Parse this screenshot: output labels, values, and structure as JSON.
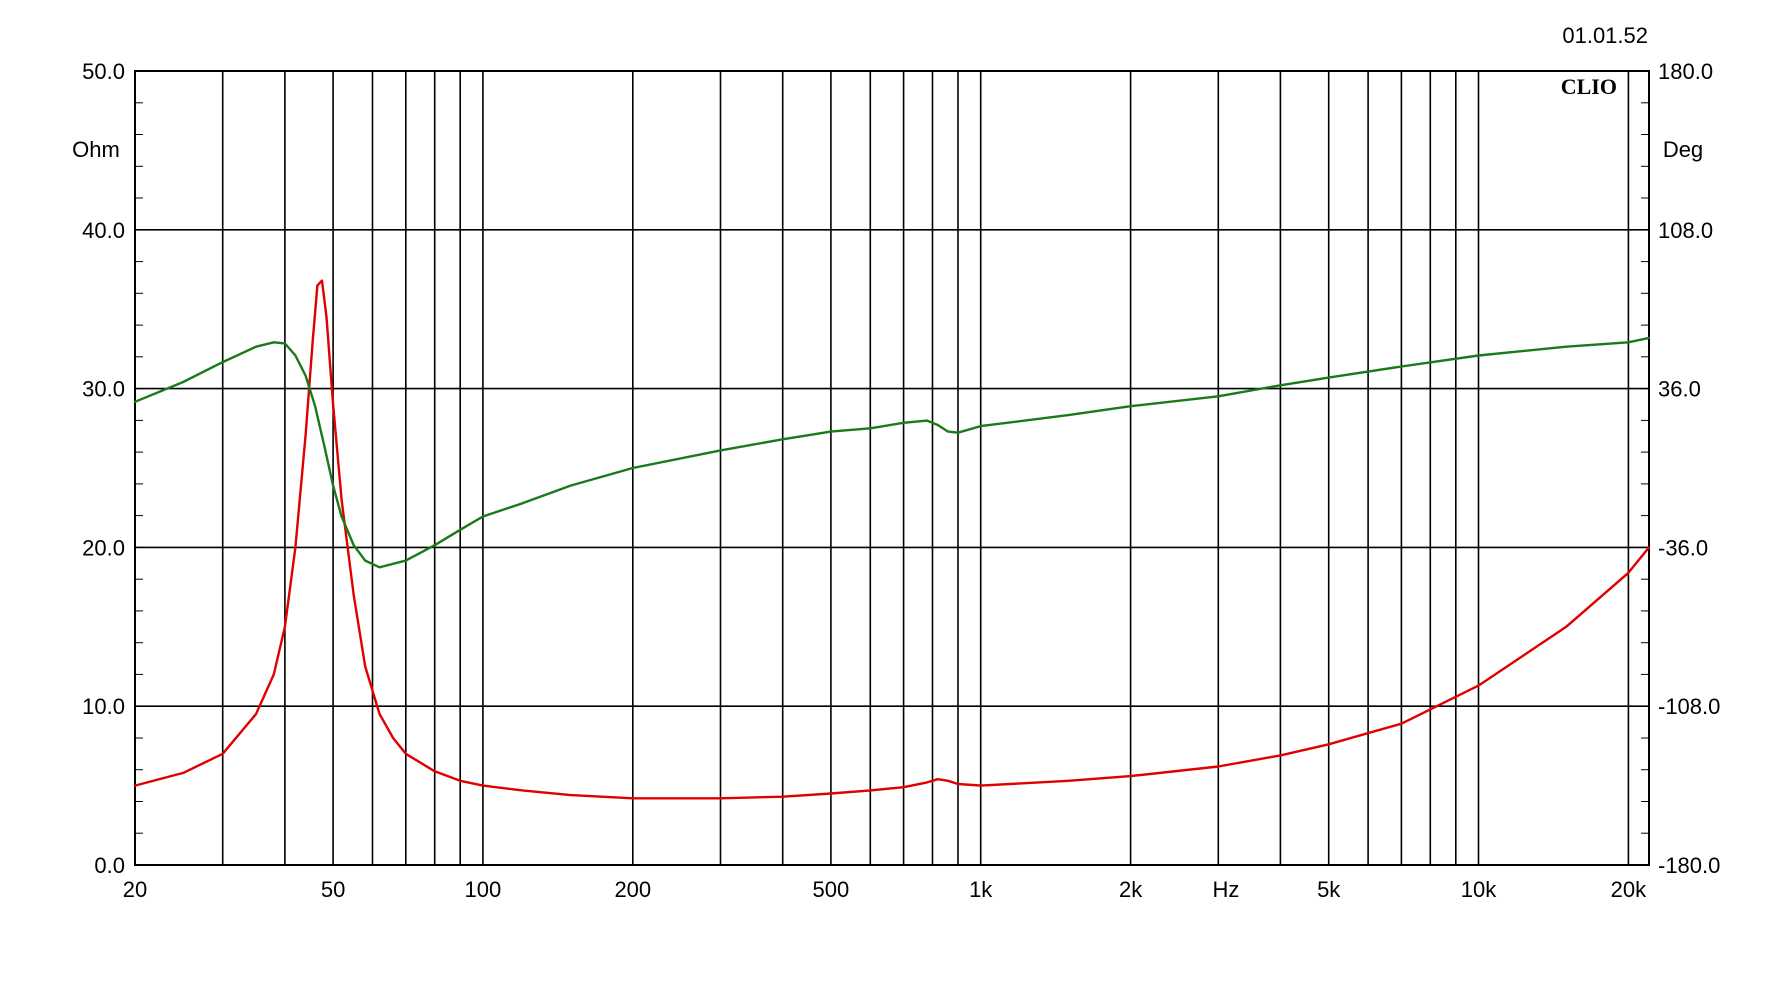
{
  "chart_data": {
    "type": "line",
    "timestamp": "01.01.52",
    "brand": "CLIO",
    "x_axis": {
      "unit_label": "Hz",
      "scale": "log",
      "range": [
        20,
        22000
      ],
      "tick_labels": [
        {
          "value": 20,
          "label": "20"
        },
        {
          "value": 50,
          "label": "50"
        },
        {
          "value": 100,
          "label": "100"
        },
        {
          "value": 200,
          "label": "200"
        },
        {
          "value": 500,
          "label": "500"
        },
        {
          "value": 1000,
          "label": "1k"
        },
        {
          "value": 2000,
          "label": "2k"
        },
        {
          "value": 5000,
          "label": "5k"
        },
        {
          "value": 10000,
          "label": "10k"
        },
        {
          "value": 20000,
          "label": "20k"
        }
      ],
      "grid_lines": [
        30,
        40,
        50,
        60,
        70,
        80,
        90,
        100,
        200,
        300,
        400,
        500,
        600,
        700,
        800,
        900,
        1000,
        2000,
        3000,
        4000,
        5000,
        6000,
        7000,
        8000,
        9000,
        10000,
        20000
      ]
    },
    "y_left": {
      "unit_label": "Ohm",
      "range": [
        0,
        50
      ],
      "ticks": [
        {
          "value": 0,
          "label": "0.0"
        },
        {
          "value": 10,
          "label": "10.0"
        },
        {
          "value": 20,
          "label": "20.0"
        },
        {
          "value": 30,
          "label": "30.0"
        },
        {
          "value": 40,
          "label": "40.0"
        },
        {
          "value": 50,
          "label": "50.0"
        }
      ]
    },
    "y_right": {
      "unit_label": "Deg",
      "range": [
        -180,
        180
      ],
      "ticks": [
        {
          "value": -180,
          "label": "-180.0"
        },
        {
          "value": -108,
          "label": "-108.0"
        },
        {
          "value": -36,
          "label": "-36.0"
        },
        {
          "value": 36,
          "label": "36.0"
        },
        {
          "value": 108,
          "label": "108.0"
        },
        {
          "value": 180,
          "label": "180.0"
        }
      ]
    },
    "grid": true,
    "series": [
      {
        "axis": "left",
        "color": "#e00000",
        "points": [
          [
            20,
            5.0
          ],
          [
            25,
            5.8
          ],
          [
            30,
            7.0
          ],
          [
            35,
            9.5
          ],
          [
            38,
            12.0
          ],
          [
            40,
            15.0
          ],
          [
            42,
            20.0
          ],
          [
            44,
            27.0
          ],
          [
            45.5,
            33.0
          ],
          [
            46.5,
            36.5
          ],
          [
            47.5,
            36.8
          ],
          [
            48.5,
            34.5
          ],
          [
            50,
            29.0
          ],
          [
            52,
            23.0
          ],
          [
            55,
            17.0
          ],
          [
            58,
            12.5
          ],
          [
            62,
            9.5
          ],
          [
            66,
            8.0
          ],
          [
            70,
            7.0
          ],
          [
            80,
            5.9
          ],
          [
            90,
            5.3
          ],
          [
            100,
            5.0
          ],
          [
            120,
            4.7
          ],
          [
            150,
            4.4
          ],
          [
            200,
            4.2
          ],
          [
            300,
            4.2
          ],
          [
            400,
            4.3
          ],
          [
            500,
            4.5
          ],
          [
            600,
            4.7
          ],
          [
            700,
            4.9
          ],
          [
            780,
            5.2
          ],
          [
            820,
            5.4
          ],
          [
            860,
            5.3
          ],
          [
            900,
            5.1
          ],
          [
            1000,
            5.0
          ],
          [
            1500,
            5.3
          ],
          [
            2000,
            5.6
          ],
          [
            3000,
            6.2
          ],
          [
            4000,
            6.9
          ],
          [
            5000,
            7.6
          ],
          [
            7000,
            8.9
          ],
          [
            10000,
            11.3
          ],
          [
            15000,
            15.0
          ],
          [
            20000,
            18.4
          ],
          [
            22000,
            20.0
          ]
        ]
      },
      {
        "axis": "right",
        "color": "#1a7a1a",
        "points": [
          [
            20,
            30.0
          ],
          [
            25,
            39.0
          ],
          [
            30,
            48.0
          ],
          [
            35,
            55.0
          ],
          [
            38,
            57.0
          ],
          [
            40,
            56.5
          ],
          [
            42,
            51.0
          ],
          [
            44,
            42.0
          ],
          [
            46,
            28.0
          ],
          [
            48,
            10.0
          ],
          [
            50,
            -8.0
          ],
          [
            52,
            -22.0
          ],
          [
            55,
            -35.0
          ],
          [
            58,
            -42.0
          ],
          [
            62,
            -45.0
          ],
          [
            70,
            -42.0
          ],
          [
            80,
            -35.0
          ],
          [
            90,
            -28.0
          ],
          [
            100,
            -22.0
          ],
          [
            120,
            -16.0
          ],
          [
            150,
            -8.0
          ],
          [
            200,
            0.0
          ],
          [
            300,
            8.0
          ],
          [
            400,
            13.0
          ],
          [
            500,
            16.5
          ],
          [
            600,
            18.0
          ],
          [
            700,
            20.5
          ],
          [
            780,
            21.5
          ],
          [
            820,
            19.5
          ],
          [
            860,
            16.5
          ],
          [
            900,
            16.0
          ],
          [
            1000,
            19.0
          ],
          [
            1500,
            24.0
          ],
          [
            2000,
            28.0
          ],
          [
            3000,
            32.5
          ],
          [
            4000,
            37.5
          ],
          [
            5000,
            41.0
          ],
          [
            7000,
            46.0
          ],
          [
            10000,
            51.0
          ],
          [
            15000,
            55.0
          ],
          [
            20000,
            57.0
          ],
          [
            22000,
            59.0
          ]
        ]
      }
    ]
  }
}
